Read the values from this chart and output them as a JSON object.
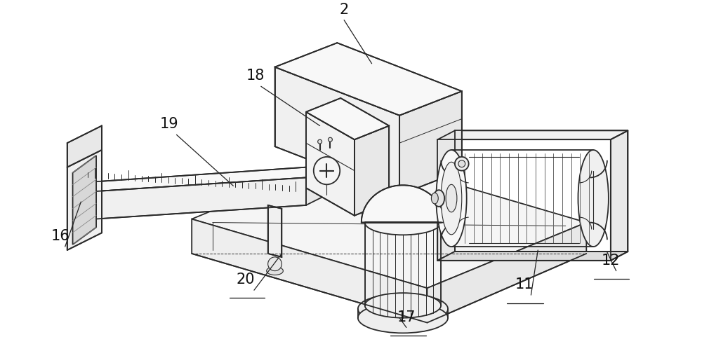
{
  "bg_color": "#ffffff",
  "line_color": "#2a2a2a",
  "line_width": 1.3,
  "fig_width": 10.0,
  "fig_height": 5.01,
  "dpi": 100,
  "label_fontsize": 15,
  "label_color": "#111111"
}
